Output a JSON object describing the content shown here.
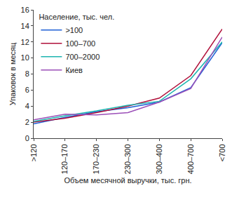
{
  "chart_data": {
    "type": "line",
    "x_label": "Объем месячной выручки, тыс. грн.",
    "y_label": "Упаковок в месяц",
    "legend_title": "Население, тыс. чел.",
    "legend": "top-left",
    "grid": false,
    "categories": [
      ">120",
      "120–170",
      "170–230",
      "230–300",
      "300–400",
      "400–700",
      "<700"
    ],
    "series": [
      {
        "name": ">100",
        "color": "#1f5fd6",
        "values": [
          1.8,
          2.6,
          3.3,
          3.8,
          4.5,
          6.3,
          11.9
        ]
      },
      {
        "name": "100–700",
        "color": "#b0103a",
        "values": [
          2.0,
          2.5,
          3.2,
          4.0,
          5.0,
          7.8,
          13.6
        ]
      },
      {
        "name": "700–2000",
        "color": "#1fb5b0",
        "values": [
          2.1,
          2.8,
          3.4,
          4.1,
          4.6,
          7.4,
          12.0
        ]
      },
      {
        "name": "Киев",
        "color": "#9b4fb8",
        "values": [
          2.3,
          3.0,
          2.9,
          3.2,
          4.5,
          6.2,
          12.6
        ]
      }
    ],
    "ylim": [
      0,
      16
    ],
    "yticks": [
      0,
      2,
      4,
      6,
      8,
      10,
      12,
      14,
      16
    ]
  }
}
